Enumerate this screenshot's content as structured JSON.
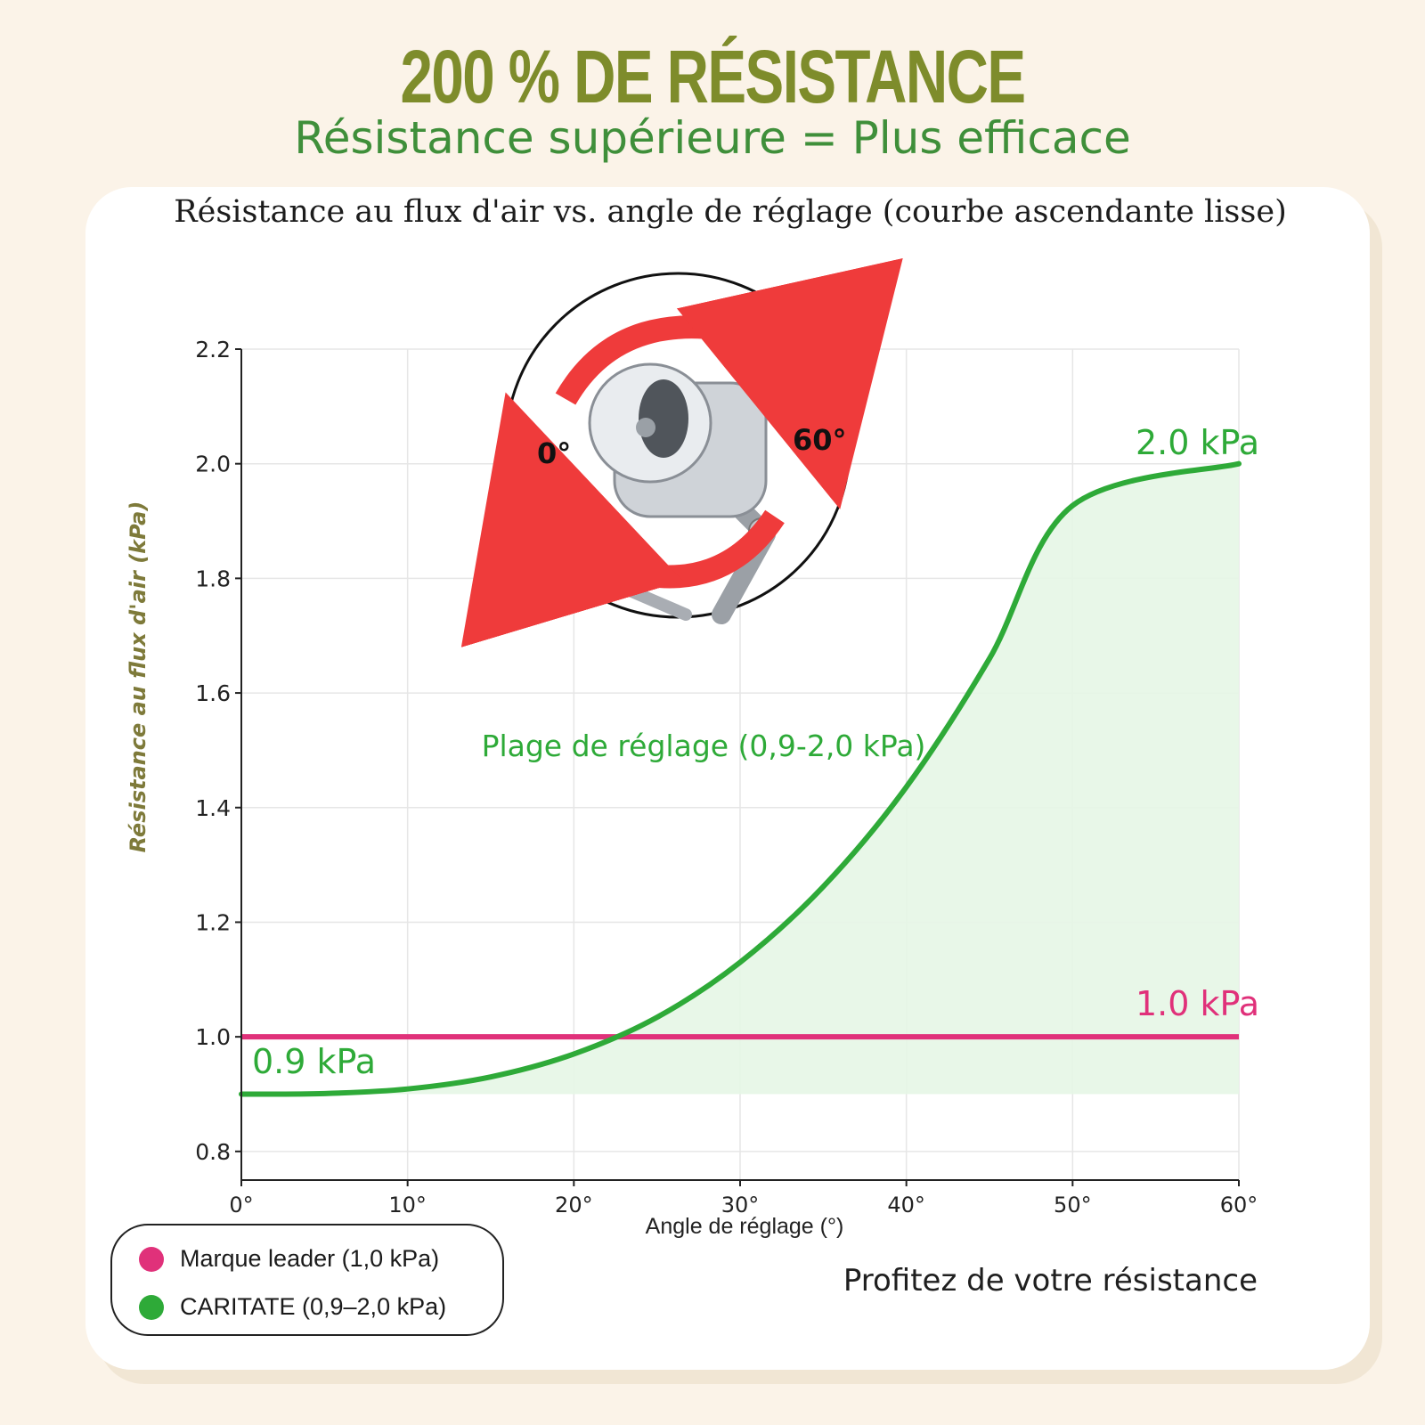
{
  "header": {
    "headline": "200 % DE RÉSISTANCE",
    "subheadline": "Résistance supérieure = Plus efficace"
  },
  "colors": {
    "headline": "#7e8c2b",
    "subheadline": "#3f8f3a",
    "caritate": "#2eaa38",
    "leader": "#e0317a",
    "fill": "#e6f6e6",
    "ylabel": "#7e7a3a"
  },
  "chart_data": {
    "type": "line",
    "title": "Résistance au flux d'air vs. angle de réglage (courbe ascendante lisse)",
    "xlabel": "Angle de réglage (°)",
    "ylabel": "Résistance au flux d'air (kPa)",
    "xlim": [
      0,
      60
    ],
    "ylim": [
      0.75,
      2.2
    ],
    "xticks": [
      0,
      10,
      20,
      30,
      40,
      50,
      60
    ],
    "xtick_labels": [
      "0°",
      "10°",
      "20°",
      "30°",
      "40°",
      "50°",
      "60°"
    ],
    "yticks": [
      0.8,
      1.0,
      1.2,
      1.4,
      1.6,
      1.8,
      2.0,
      2.2
    ],
    "ytick_labels": [
      "0.8",
      "1.0",
      "1.2",
      "1.4",
      "1.6",
      "1.8",
      "2.0",
      "2.2"
    ],
    "grid": true,
    "series": [
      {
        "name": "Marque leader (1,0 kPa)",
        "color": "#e0317a",
        "x": [
          0,
          60
        ],
        "y": [
          1.0,
          1.0
        ]
      },
      {
        "name": "CARITATE (0,9–2,0 kPa)",
        "color": "#2eaa38",
        "x": [
          0,
          5,
          10,
          15,
          20,
          25,
          30,
          35,
          40,
          45,
          50,
          55,
          60
        ],
        "y": [
          0.9,
          0.901,
          0.909,
          0.93,
          0.97,
          1.034,
          1.13,
          1.262,
          1.436,
          1.66,
          1.927,
          2.0,
          2.0
        ]
      }
    ],
    "annotations": {
      "start_label": "0.9 kPa",
      "end_label": "2.0 kPa",
      "leader_label": "1.0 kPa",
      "range_label": "Plage de réglage (0,9-2,0 kPa)"
    }
  },
  "dial": {
    "min_label": "0°",
    "max_label": "60°"
  },
  "legend": {
    "items": [
      {
        "label": "Marque leader (1,0 kPa)",
        "color": "#e0317a"
      },
      {
        "label": "CARITATE (0,9–2,0 kPa)",
        "color": "#2eaa38"
      }
    ]
  },
  "footer": {
    "tagline": "Profitez de votre résistance"
  }
}
